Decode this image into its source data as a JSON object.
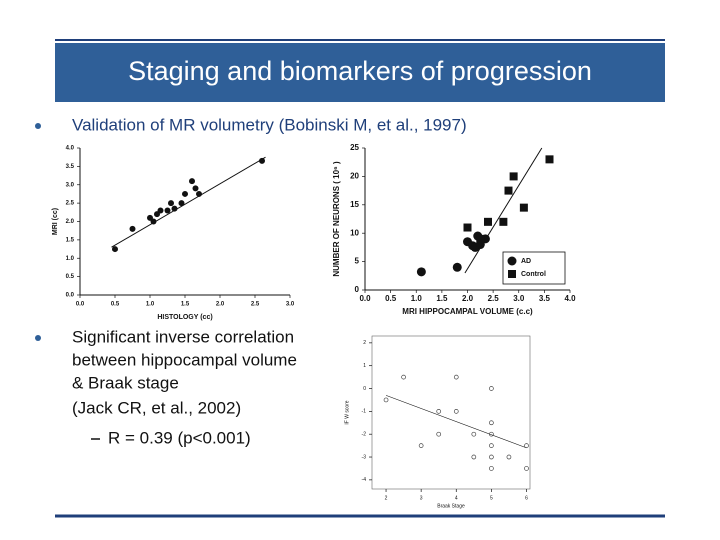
{
  "header": {
    "title": "Staging and biomarkers of progression"
  },
  "bullets": [
    {
      "lines": [
        "Validation of MR volumetry (Bobinski M, et al., 1997)"
      ]
    },
    {
      "lines": [
        "Significant inverse correlation",
        "between hippocampal volume",
        "& Braak stage",
        "(Jack CR, et al., 2002)"
      ],
      "sub": [
        "R = 0.39 (p<0.001)"
      ]
    }
  ],
  "chart_data": [
    {
      "type": "scatter",
      "x_label": "HISTOLOGY (cc)",
      "y_label": "MRI (cc)",
      "marker": "circle",
      "color": "#111111",
      "xlim": [
        0,
        3
      ],
      "ylim": [
        0,
        4
      ],
      "xticks": [
        {
          "value": 0,
          "label": "0.0"
        },
        0.5,
        {
          "value": 1,
          "label": "1.0"
        },
        1.5,
        {
          "value": 2,
          "label": "2.0"
        },
        2.5,
        {
          "value": 3,
          "label": "3.0"
        }
      ],
      "yticks": [
        {
          "value": 0,
          "label": "0.0"
        },
        0.5,
        {
          "value": 1,
          "label": "1.0"
        },
        1.5,
        {
          "value": 2,
          "label": "2.0"
        },
        2.5,
        {
          "value": 3,
          "label": "3.0"
        },
        3.5,
        {
          "value": 4,
          "label": "4.0"
        }
      ],
      "x": [
        0.5,
        0.75,
        1.0,
        1.05,
        1.1,
        1.15,
        1.25,
        1.3,
        1.35,
        1.45,
        1.5,
        1.6,
        1.65,
        1.7,
        2.6
      ],
      "y": [
        1.25,
        1.8,
        2.1,
        2.0,
        2.2,
        2.3,
        2.3,
        2.5,
        2.35,
        2.5,
        2.75,
        3.1,
        2.9,
        2.75,
        3.65
      ],
      "trend_line": {
        "x": [
          0.45,
          2.65
        ],
        "y": [
          1.3,
          3.75
        ]
      }
    },
    {
      "type": "scatter",
      "x_label": "MRI HIPPOCAMPAL VOLUME (c.c)",
      "y_label": "NUMBER OF NEURONS ( 10⁶ )",
      "xlim": [
        0,
        4
      ],
      "ylim": [
        0,
        25
      ],
      "xticks": [
        {
          "value": 0,
          "label": "0.0"
        },
        0.5,
        {
          "value": 1,
          "label": "1.0"
        },
        1.5,
        {
          "value": 2,
          "label": "2.0"
        },
        2.5,
        {
          "value": 3,
          "label": "3.0"
        },
        3.5,
        {
          "value": 4,
          "label": "4.0"
        }
      ],
      "yticks": [
        0,
        5,
        10,
        15,
        20,
        25
      ],
      "series": [
        {
          "name": "AD",
          "marker": "circle",
          "color": "#111111",
          "x": [
            1.1,
            1.8,
            2.0,
            2.1,
            2.15,
            2.2,
            2.25,
            2.35
          ],
          "y": [
            3.2,
            4.0,
            8.5,
            7.8,
            7.5,
            9.5,
            8.0,
            9.0
          ]
        },
        {
          "name": "Control",
          "marker": "square",
          "color": "#111111",
          "x": [
            2.0,
            2.25,
            2.4,
            2.7,
            2.8,
            2.9,
            3.1,
            3.6
          ],
          "y": [
            11.0,
            9.0,
            12.0,
            12.0,
            17.5,
            20.0,
            14.5,
            23.0
          ]
        }
      ],
      "trend_line": {
        "x": [
          1.95,
          3.45
        ],
        "y": [
          3,
          25
        ]
      }
    },
    {
      "type": "scatter",
      "x_label": "Braak Stage",
      "y_label": "IF W score",
      "marker": "open-circle",
      "color": "#444444",
      "xlim": [
        1.6,
        6.1
      ],
      "ylim": [
        -4.4,
        2.3
      ],
      "xticks": [
        2,
        3,
        4,
        5,
        6
      ],
      "yticks": [
        -4,
        -3,
        -2,
        -1,
        0,
        1,
        2
      ],
      "x": [
        2,
        2.5,
        3,
        3.5,
        3.5,
        4,
        4,
        4.5,
        4.5,
        5,
        5,
        5,
        5,
        5,
        5,
        5.5,
        6,
        6
      ],
      "y": [
        -0.5,
        0.5,
        -2.5,
        -1,
        -2,
        0.5,
        -1,
        -2,
        -3,
        0,
        -1.5,
        -2,
        -2.5,
        -3,
        -3.5,
        -3,
        -2.5,
        -3.5
      ],
      "trend_line": {
        "x": [
          2,
          6
        ],
        "y": [
          -0.3,
          -2.6
        ]
      }
    }
  ]
}
